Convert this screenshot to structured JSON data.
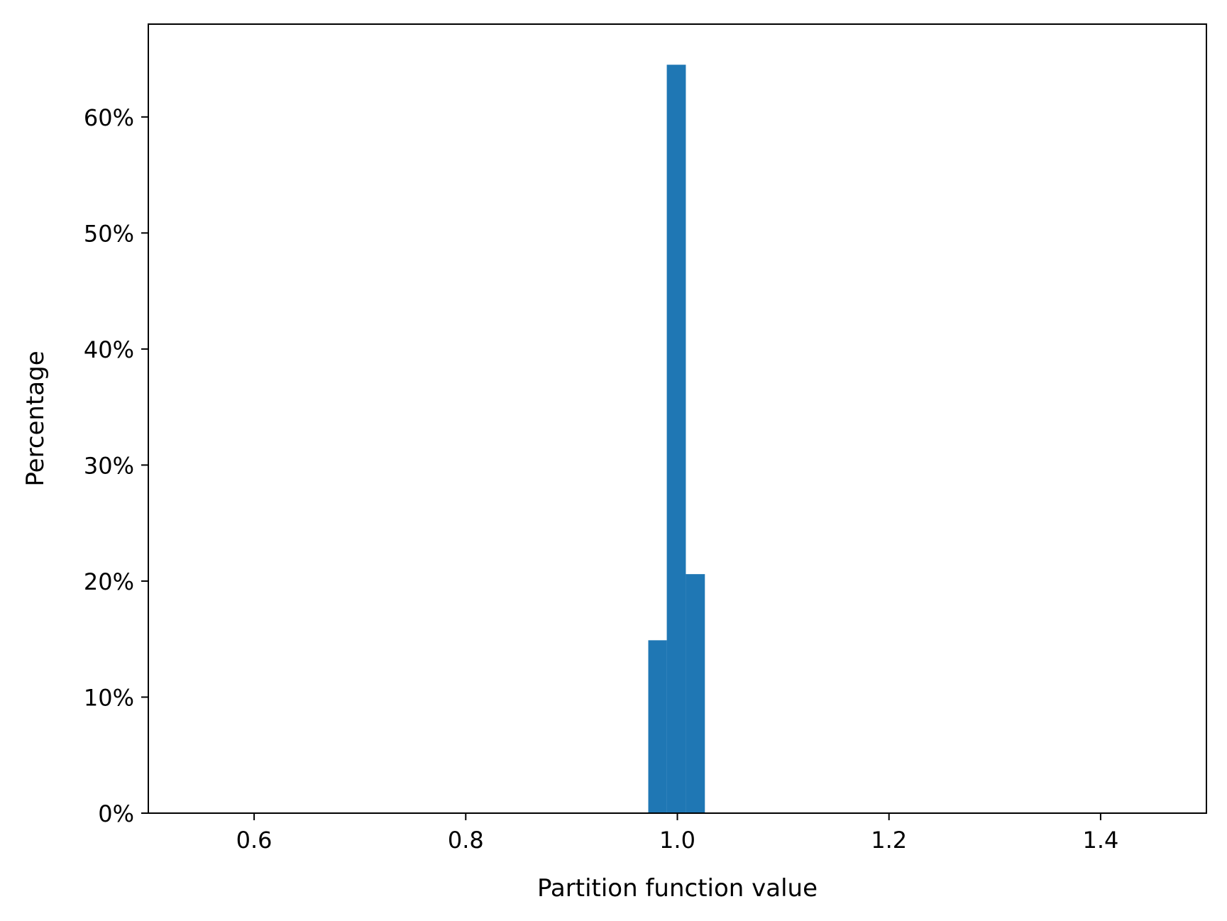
{
  "chart_data": {
    "type": "bar",
    "subtype": "histogram",
    "xlabel": "Partition function value",
    "ylabel": "Percentage",
    "xlim": [
      0.5,
      1.5
    ],
    "ylim": [
      0,
      0.68
    ],
    "x_ticks": [
      {
        "value": 0.6,
        "label": "0.6"
      },
      {
        "value": 0.8,
        "label": "0.8"
      },
      {
        "value": 1.0,
        "label": "1.0"
      },
      {
        "value": 1.2,
        "label": "1.2"
      },
      {
        "value": 1.4,
        "label": "1.4"
      }
    ],
    "y_ticks": [
      {
        "value": 0.0,
        "label": "0%"
      },
      {
        "value": 0.1,
        "label": "10%"
      },
      {
        "value": 0.2,
        "label": "20%"
      },
      {
        "value": 0.3,
        "label": "30%"
      },
      {
        "value": 0.4,
        "label": "40%"
      },
      {
        "value": 0.5,
        "label": "50%"
      },
      {
        "value": 0.6,
        "label": "60%"
      }
    ],
    "bins": [
      {
        "x0": 0.9725,
        "x1": 0.99,
        "value": 0.149
      },
      {
        "x0": 0.99,
        "x1": 1.008,
        "value": 0.645
      },
      {
        "x0": 1.008,
        "x1": 1.026,
        "value": 0.206
      }
    ],
    "bar_color": "#1f77b4",
    "grid": false,
    "legend": "none"
  }
}
